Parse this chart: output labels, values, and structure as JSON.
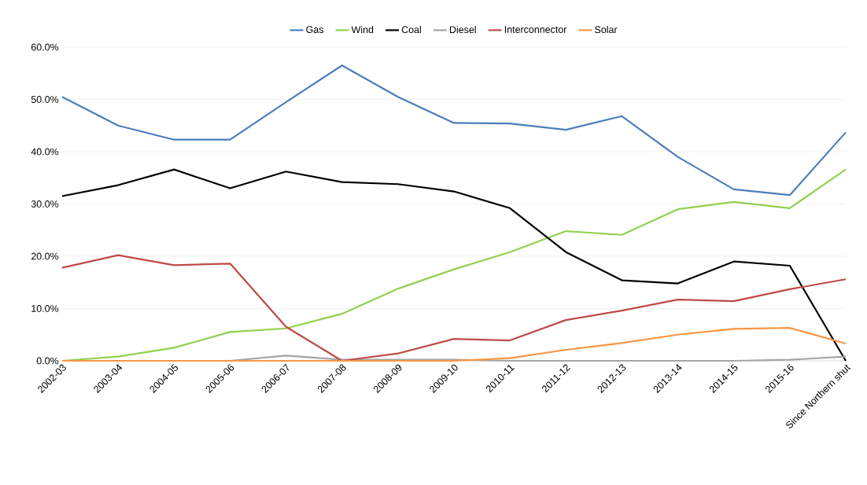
{
  "chart_data": {
    "type": "line",
    "categories": [
      "2002-03",
      "2003-04",
      "2004-05",
      "2005-06",
      "2006-07",
      "2007-08",
      "2008-09",
      "2009-10",
      "2010-11",
      "2011-12",
      "2012-13",
      "2013-14",
      "2014-15",
      "2015-16",
      "Since Northern shut"
    ],
    "series": [
      {
        "name": "Gas",
        "color": "#4a7ebb",
        "values": [
          50.5,
          45.0,
          42.3,
          42.3,
          49.5,
          56.5,
          50.5,
          45.5,
          45.4,
          44.2,
          46.8,
          39.0,
          32.8,
          31.7,
          43.7
        ]
      },
      {
        "name": "Wind",
        "color": "#92d050",
        "values": [
          0.0,
          0.8,
          2.5,
          5.5,
          6.2,
          9.0,
          13.8,
          17.5,
          20.8,
          24.8,
          24.1,
          29.0,
          30.4,
          29.2,
          36.6
        ]
      },
      {
        "name": "Coal",
        "color": "#000000",
        "values": [
          31.5,
          33.6,
          36.6,
          33.0,
          36.2,
          34.2,
          33.8,
          32.4,
          29.2,
          20.8,
          15.4,
          14.8,
          19.0,
          18.2,
          0.0
        ]
      },
      {
        "name": "Diesel",
        "color": "#a5a5a5",
        "values": [
          0.0,
          0.0,
          0.0,
          0.0,
          1.0,
          0.2,
          0.2,
          0.2,
          0.0,
          0.0,
          0.0,
          0.0,
          0.0,
          0.2,
          0.8
        ]
      },
      {
        "name": "Interconnector",
        "color": "#be4b48",
        "values": [
          17.8,
          20.2,
          18.3,
          18.6,
          6.5,
          0.0,
          1.4,
          4.2,
          3.9,
          7.8,
          9.6,
          11.7,
          11.4,
          13.7,
          15.6
        ]
      },
      {
        "name": "Solar",
        "color": "#f79646",
        "values": [
          0.0,
          0.0,
          0.0,
          0.0,
          0.0,
          0.0,
          0.0,
          0.0,
          0.5,
          2.1,
          3.4,
          5.0,
          6.1,
          6.3,
          3.3
        ]
      }
    ],
    "ylim": [
      0,
      60
    ],
    "yticks": [
      {
        "value": 0,
        "label": "0.0%"
      },
      {
        "value": 10,
        "label": "10.0%"
      },
      {
        "value": 20,
        "label": "20.0%"
      },
      {
        "value": 30,
        "label": "30.0%"
      },
      {
        "value": 40,
        "label": "40.0%"
      },
      {
        "value": 50,
        "label": "50.0%"
      },
      {
        "value": 60,
        "label": "60.0%"
      }
    ],
    "grid": "y",
    "legend": "top"
  }
}
